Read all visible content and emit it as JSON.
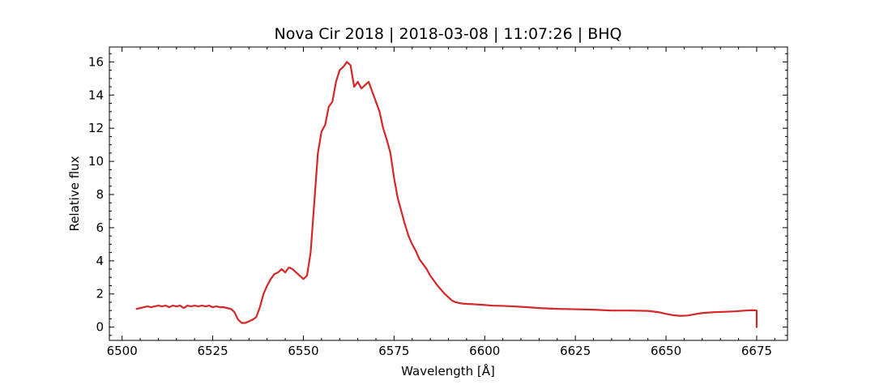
{
  "chart_data": {
    "type": "line",
    "title": "Nova Cir 2018 | 2018-03-08 | 11:07:26 | BHQ",
    "xlabel": "Wavelength [Å]",
    "ylabel": "Relative flux",
    "xlim": [
      6496.5,
      6683.5
    ],
    "ylim": [
      -0.8,
      16.9
    ],
    "xticks": [
      6500,
      6525,
      6550,
      6575,
      6600,
      6625,
      6650,
      6675
    ],
    "yticks": [
      0,
      2,
      4,
      6,
      8,
      10,
      12,
      14,
      16
    ],
    "xminor_step": 5,
    "yminor_step": 0.5,
    "ticks_direction": "in",
    "grid": false,
    "legend": "none",
    "series": [
      {
        "color": "#d62728",
        "x": [
          6504,
          6505,
          6506,
          6507,
          6508,
          6509,
          6510,
          6511,
          6512,
          6513,
          6514,
          6515,
          6516,
          6517,
          6518,
          6519,
          6520,
          6521,
          6522,
          6523,
          6524,
          6525,
          6526,
          6527,
          6528,
          6529,
          6530,
          6531,
          6532,
          6533,
          6534,
          6535,
          6536,
          6537,
          6538,
          6539,
          6540,
          6541,
          6542,
          6543,
          6544,
          6545,
          6546,
          6547,
          6548,
          6549,
          6550,
          6551,
          6552,
          6553,
          6554,
          6555,
          6556,
          6557,
          6558,
          6559,
          6560,
          6561,
          6562,
          6563,
          6564,
          6565,
          6566,
          6567,
          6568,
          6569,
          6570,
          6571,
          6572,
          6573,
          6574,
          6575,
          6576,
          6577,
          6578,
          6579,
          6580,
          6581,
          6582,
          6583,
          6584,
          6585,
          6586,
          6587,
          6588,
          6589,
          6590,
          6591,
          6592,
          6593,
          6594,
          6595,
          6597,
          6599,
          6602,
          6605,
          6608,
          6612,
          6615,
          6620,
          6625,
          6630,
          6635,
          6640,
          6645,
          6648,
          6650,
          6652,
          6654,
          6656,
          6658,
          6660,
          6663,
          6666,
          6669,
          6672,
          6674,
          6675,
          6675
        ],
        "y": [
          1.1,
          1.15,
          1.2,
          1.25,
          1.2,
          1.25,
          1.3,
          1.25,
          1.3,
          1.2,
          1.3,
          1.25,
          1.3,
          1.15,
          1.3,
          1.25,
          1.3,
          1.25,
          1.3,
          1.25,
          1.3,
          1.2,
          1.25,
          1.2,
          1.2,
          1.15,
          1.1,
          0.9,
          0.45,
          0.25,
          0.25,
          0.35,
          0.45,
          0.6,
          1.2,
          2.0,
          2.5,
          2.9,
          3.2,
          3.3,
          3.5,
          3.3,
          3.6,
          3.5,
          3.3,
          3.1,
          2.9,
          3.1,
          4.5,
          7.5,
          10.5,
          11.8,
          12.2,
          13.3,
          13.6,
          14.8,
          15.5,
          15.7,
          16.0,
          15.8,
          14.5,
          14.8,
          14.4,
          14.6,
          14.8,
          14.2,
          13.6,
          13.0,
          12.0,
          11.3,
          10.5,
          9.0,
          7.8,
          7.0,
          6.2,
          5.5,
          5.0,
          4.6,
          4.1,
          3.8,
          3.5,
          3.1,
          2.8,
          2.5,
          2.25,
          2.0,
          1.8,
          1.6,
          1.5,
          1.45,
          1.42,
          1.4,
          1.38,
          1.35,
          1.3,
          1.28,
          1.25,
          1.2,
          1.15,
          1.1,
          1.08,
          1.05,
          1.0,
          1.0,
          0.98,
          0.9,
          0.8,
          0.72,
          0.68,
          0.7,
          0.78,
          0.85,
          0.9,
          0.92,
          0.95,
          1.0,
          1.02,
          1.0,
          0.0
        ]
      }
    ]
  }
}
